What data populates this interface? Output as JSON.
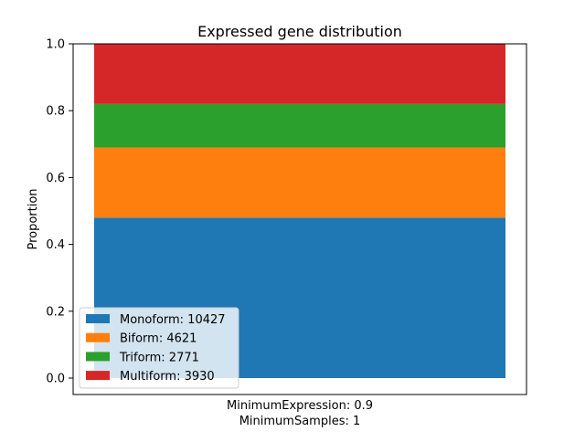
{
  "chart_data": {
    "type": "bar",
    "stacked": true,
    "title": "Expressed gene distribution",
    "xlabel_lines": [
      "MinimumExpression: 0.9",
      "MinimumSamples: 1"
    ],
    "ylabel": "Proportion",
    "ylim": [
      0,
      1.0
    ],
    "yticks": [
      0.0,
      0.2,
      0.4,
      0.6,
      0.8,
      1.0
    ],
    "ytick_labels": [
      "0.0",
      "0.2",
      "0.4",
      "0.6",
      "0.8",
      "1.0"
    ],
    "grid": false,
    "legend_position": "lower-left",
    "series": [
      {
        "name": "Monoform: 10427",
        "value": 0.48,
        "color": "#1f77b4"
      },
      {
        "name": "Biform: 4621",
        "value": 0.21,
        "color": "#ff7f0e"
      },
      {
        "name": "Triform: 2771",
        "value": 0.13,
        "color": "#2ca02c"
      },
      {
        "name": "Multiform: 3930",
        "value": 0.18,
        "color": "#d62728"
      }
    ]
  }
}
